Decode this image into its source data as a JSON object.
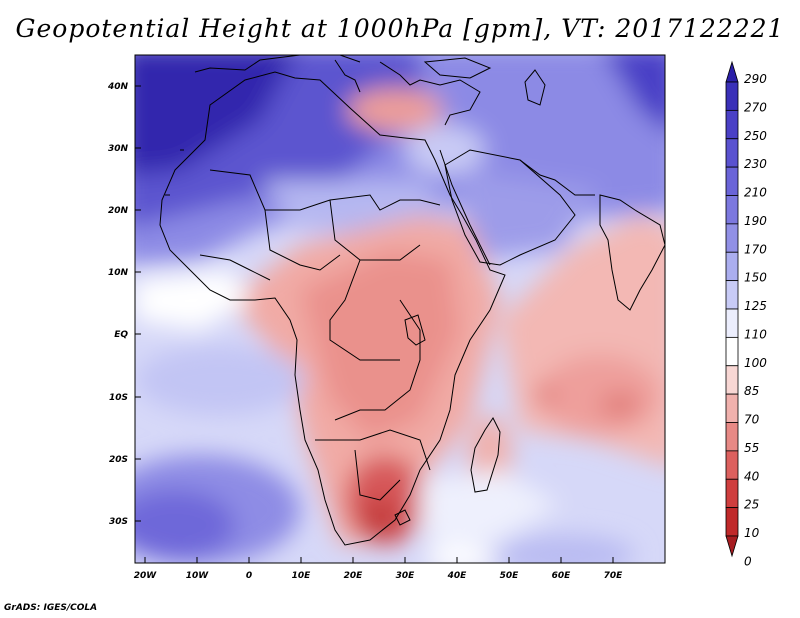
{
  "title": "Geopotential Height at 1000hPa [gpm], VT: 2017122221",
  "credit": "GrADS: IGES/COLA",
  "lat_ticks": [
    "40N",
    "30N",
    "20N",
    "10N",
    "EQ",
    "10S",
    "20S",
    "30S"
  ],
  "lon_ticks": [
    "20W",
    "10W",
    "0",
    "10E",
    "20E",
    "30E",
    "40E",
    "50E",
    "60E",
    "70E"
  ],
  "colorbar": {
    "levels": [
      "290",
      "270",
      "250",
      "230",
      "210",
      "190",
      "170",
      "150",
      "125",
      "110",
      "100",
      "85",
      "70",
      "55",
      "40",
      "25",
      "10",
      "0"
    ],
    "colors": [
      "#2b1fa8",
      "#3a30b8",
      "#4a40c6",
      "#5a52d0",
      "#6a64d8",
      "#7c78df",
      "#9190e6",
      "#abaeef",
      "#c8cbf6",
      "#eceefd",
      "#ffffff",
      "#f8d7d4",
      "#f0b1ad",
      "#e78985",
      "#dc605e",
      "#cf3e3e",
      "#c0292a",
      "#a71d21"
    ]
  },
  "map": {
    "region": "Africa and Western Indian Ocean",
    "lat_range": [
      -37,
      45
    ],
    "lon_range": [
      -23,
      80
    ]
  }
}
